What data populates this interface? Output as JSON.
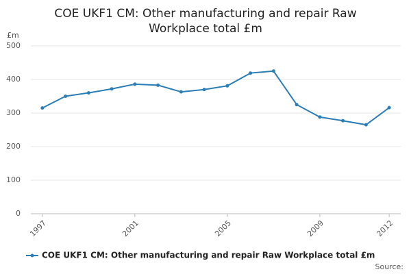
{
  "chart_data": {
    "type": "line",
    "title_lines": [
      "COE UKF1 CM: Other manufacturing and repair Raw",
      "Workplace total £m"
    ],
    "y_unit": "£m",
    "source": "Source:",
    "x": [
      1997,
      1998,
      1999,
      2000,
      2001,
      2002,
      2003,
      2004,
      2005,
      2006,
      2007,
      2008,
      2009,
      2010,
      2011,
      2012
    ],
    "series": [
      {
        "name": "COE UKF1 CM: Other manufacturing and repair Raw Workplace total £m",
        "color": "#2a7db5",
        "values": [
          315,
          350,
          360,
          372,
          386,
          383,
          363,
          370,
          381,
          419,
          425,
          325,
          288,
          277,
          265,
          316
        ]
      }
    ],
    "xlim": [
      1996.5,
      2012.5
    ],
    "xticks": [
      1997,
      2001,
      2005,
      2009,
      2012
    ],
    "ylim": [
      0,
      500
    ],
    "yticks": [
      0,
      100,
      200,
      300,
      400,
      500
    ],
    "grid": true,
    "legend": "bottom"
  }
}
